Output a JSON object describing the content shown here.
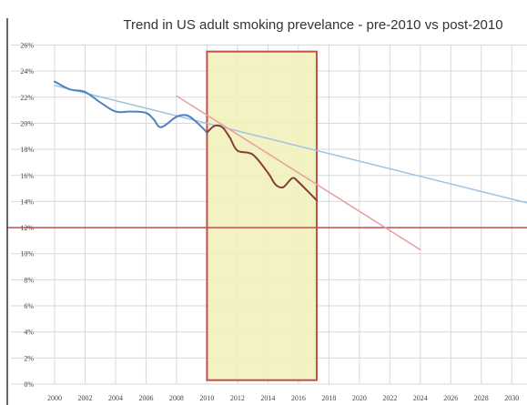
{
  "chart_data": {
    "type": "line",
    "title": "Trend in US adult smoking prevelance - pre-2010 vs post-2010",
    "xlabel": "",
    "ylabel": "",
    "xlim": [
      2000,
      2031
    ],
    "ylim": [
      0,
      26
    ],
    "x_ticks": [
      "2000",
      "2002",
      "2004",
      "2006",
      "2008",
      "2010",
      "2012",
      "2014",
      "2016",
      "2018",
      "2020",
      "2022",
      "2024",
      "2026",
      "2028",
      "2030"
    ],
    "y_ticks": [
      "0%",
      "2%",
      "4%",
      "6%",
      "8%",
      "10%",
      "12%",
      "14%",
      "16%",
      "18%",
      "20%",
      "22%",
      "24%",
      "26%"
    ],
    "grid": true,
    "legend": "none",
    "highlight_region": {
      "x_start": 2010,
      "x_end": 2017.2,
      "y_start": 0.3,
      "y_end": 25.5,
      "fill": "#f0f0b8",
      "stroke": "#c0504d"
    },
    "reference_line": {
      "y": 12,
      "color": "#c0504d"
    },
    "series": [
      {
        "role": "pre-2010 prevalence",
        "color": "#4f81bd",
        "x": [
          2000,
          2001,
          2002,
          2003,
          2004,
          2005,
          2006,
          2006.5,
          2007,
          2008,
          2008.7,
          2009.3,
          2010
        ],
        "y": [
          23.2,
          22.6,
          22.4,
          21.6,
          20.9,
          20.9,
          20.8,
          20.3,
          19.7,
          20.5,
          20.6,
          20.1,
          19.3
        ]
      },
      {
        "role": "post-2010 prevalence",
        "color": "#8b3a3a",
        "x": [
          2010,
          2010.5,
          2011,
          2011.5,
          2012,
          2013,
          2014,
          2014.5,
          2015,
          2015.6,
          2016,
          2016.6,
          2017.2
        ],
        "y": [
          19.3,
          19.8,
          19.7,
          18.9,
          17.9,
          17.6,
          16.2,
          15.3,
          15.1,
          15.8,
          15.5,
          14.8,
          14.1
        ]
      },
      {
        "role": "pre-2010 trend",
        "color": "#9dc3e6",
        "x": [
          2000,
          2031
        ],
        "y": [
          22.9,
          13.9
        ]
      },
      {
        "role": "post-2010 trend",
        "color": "#e6a0a0",
        "x": [
          2008,
          2024
        ],
        "y": [
          22.1,
          10.3
        ]
      }
    ]
  }
}
